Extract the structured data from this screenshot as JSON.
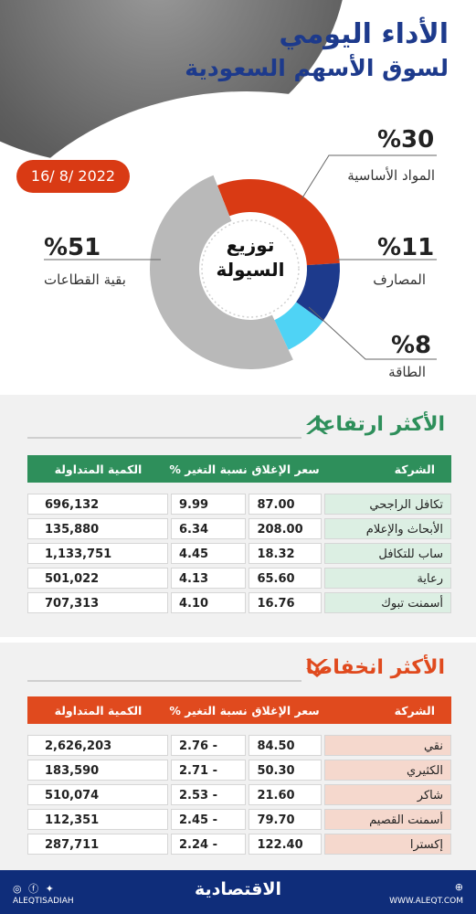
{
  "header": {
    "title_line1": "الأداء اليومي",
    "title_line2": "لسوق الأسهم السعودية",
    "date": "16/ 8/ 2022"
  },
  "colors": {
    "orange": "#d93a14",
    "navy": "#1d3a8c",
    "blue": "#0f2d7a",
    "cyan": "#4fd3f5",
    "grey": "#b9b9b9",
    "green": "#2e8f5b",
    "red_header": "#e04a1e"
  },
  "chart_data": {
    "type": "pie",
    "variant": "donut",
    "center_label_line1": "توزيع",
    "center_label_line2": "السيولة",
    "slices": [
      {
        "label": "المواد الأساسية",
        "value": 30,
        "value_text": "%30",
        "color": "#d93a14"
      },
      {
        "label": "المصارف",
        "value": 11,
        "value_text": "%11",
        "color": "#1d3a8c"
      },
      {
        "label": "الطاقة",
        "value": 8,
        "value_text": "%8",
        "color": "#4fd3f5"
      },
      {
        "label": "بقية القطاعات",
        "value": 51,
        "value_text": "%51",
        "color": "#b9b9b9"
      }
    ]
  },
  "gainers": {
    "title": "الأكثر ارتفاعا",
    "icon": "double-chevron-up-icon",
    "columns": [
      "الشركة",
      "سعر الإغلاق",
      "نسبة التغير %",
      "الكمية المتداولة"
    ],
    "rows": [
      [
        "تكافل الراجحي",
        "87.00",
        "9.99",
        "696,132"
      ],
      [
        "الأبحاث والإعلام",
        "208.00",
        "6.34",
        "135,880"
      ],
      [
        "ساب للتكافل",
        "18.32",
        "4.45",
        "1,133,751"
      ],
      [
        "رعاية",
        "65.60",
        "4.13",
        "501,022"
      ],
      [
        "أسمنت تبوك",
        "16.76",
        "4.10",
        "707,313"
      ]
    ]
  },
  "losers": {
    "title": "الأكثر انخفاضا",
    "icon": "double-chevron-down-icon",
    "columns": [
      "الشركة",
      "سعر الإغلاق",
      "نسبة التغير %",
      "الكمية المتداولة"
    ],
    "rows": [
      [
        "نقي",
        "84.50",
        "2.76 -",
        "2,626,203"
      ],
      [
        "الكثيري",
        "50.30",
        "2.71 -",
        "183,590"
      ],
      [
        "شاكر",
        "21.60",
        "2.53 -",
        "510,074"
      ],
      [
        "أسمنت القصيم",
        "79.70",
        "2.45 -",
        "112,351"
      ],
      [
        "إكسترا",
        "122.40",
        "2.24 -",
        "287,711"
      ]
    ]
  },
  "footer": {
    "logo": "الاقتصادية",
    "handle": "ALEQTISADIAH",
    "site": "WWW.ALEQT.COM",
    "social_icons": [
      "twitter-icon",
      "facebook-icon",
      "instagram-icon"
    ],
    "site_icon": "globe-icon"
  }
}
